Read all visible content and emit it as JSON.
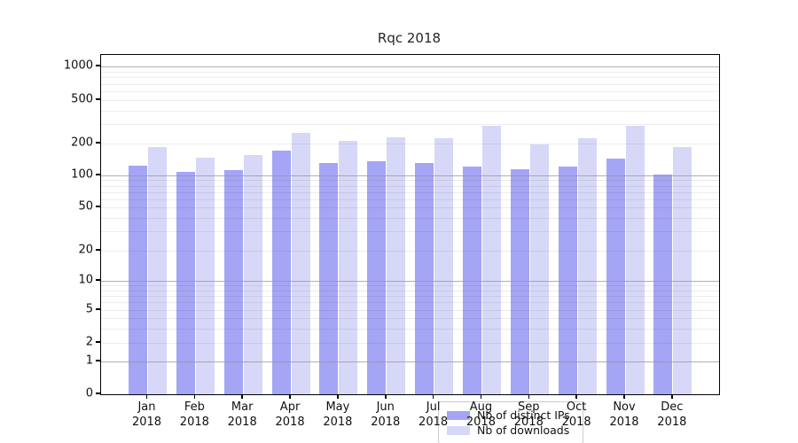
{
  "chart_data": {
    "type": "bar",
    "title": "Rqc 2018",
    "scale": "symlog",
    "grid": true,
    "legend_position": "lower center",
    "year": "2018",
    "categories": [
      "Jan",
      "Feb",
      "Mar",
      "Apr",
      "May",
      "Jun",
      "Jul",
      "Aug",
      "Sep",
      "Oct",
      "Nov",
      "Dec"
    ],
    "yticks": [
      0,
      1,
      2,
      5,
      10,
      20,
      50,
      100,
      200,
      500,
      1000
    ],
    "ylim": [
      0,
      1200
    ],
    "series": [
      {
        "name": "Nb of distinct IPs",
        "color": "#a5a5f5",
        "values": [
          123,
          108,
          113,
          171,
          130,
          135,
          131,
          122,
          115,
          121,
          145,
          102
        ]
      },
      {
        "name": "Nb of downloads",
        "color": "#d7d7f8",
        "values": [
          185,
          146,
          156,
          252,
          213,
          227,
          222,
          290,
          196,
          223,
          292,
          186
        ]
      }
    ]
  }
}
